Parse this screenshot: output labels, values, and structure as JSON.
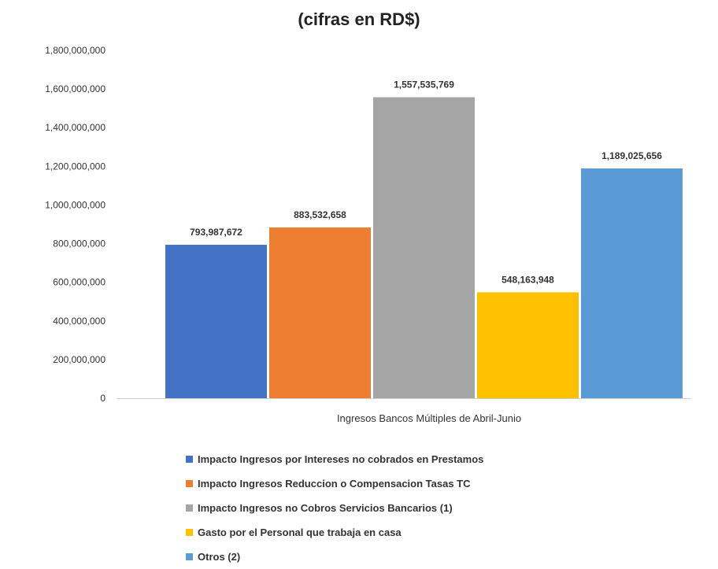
{
  "chart_data": {
    "type": "bar",
    "title": "(cifras en RD$)",
    "xlabel": "Ingresos Bancos Múltiples de Abril-Junio",
    "ylabel": "",
    "ylim": [
      0,
      1800000000
    ],
    "yticks": [
      "0",
      "200,000,000",
      "400,000,000",
      "600,000,000",
      "800,000,000",
      "1,000,000,000",
      "1,200,000,000",
      "1,400,000,000",
      "1,600,000,000",
      "1,800,000,000"
    ],
    "grid": false,
    "legend_position": "bottom",
    "series": [
      {
        "name": "Impacto Ingresos por Intereses no cobrados en Prestamos",
        "value": 793987672,
        "label": "793,987,672",
        "color": "#4472C4"
      },
      {
        "name": "Impacto Ingresos Reduccion o Compensacion Tasas TC",
        "value": 883532658,
        "label": "883,532,658",
        "color": "#ED7D31"
      },
      {
        "name": "Impacto Ingresos no Cobros Servicios Bancarios (1)",
        "value": 1557535769,
        "label": "1,557,535,769",
        "color": "#A5A5A5"
      },
      {
        "name": "Gasto por el Personal que trabaja en casa",
        "value": 548163948,
        "label": "548,163,948",
        "color": "#FFC000"
      },
      {
        "name": "Otros (2)",
        "value": 1189025656,
        "label": "1,189,025,656",
        "color": "#5B9BD5"
      }
    ]
  }
}
